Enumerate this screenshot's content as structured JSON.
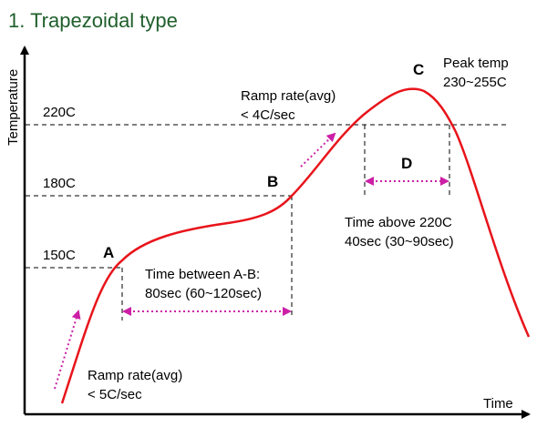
{
  "title": "1. Trapezoidal type",
  "axes": {
    "x_label": "Time",
    "y_label": "Temperature"
  },
  "temperatures": {
    "t220": "220C",
    "t180": "180C",
    "t150": "150C"
  },
  "points": {
    "a": "A",
    "b": "B",
    "c": "C",
    "d": "D"
  },
  "annotations": {
    "ramp_low_1": "Ramp rate(avg)",
    "ramp_low_2": "< 5C/sec",
    "ramp_high_1": "Ramp rate(avg)",
    "ramp_high_2": "< 4C/sec",
    "peak_1": "Peak temp",
    "peak_2": "230~255C",
    "ab_1": "Time between A-B:",
    "ab_2": "80sec (60~120sec)",
    "above_1": "Time above 220C",
    "above_2": "40sec  (30~90sec)"
  },
  "colors": {
    "title": "#1f5f2b",
    "curve": "#e8141b",
    "arrow": "#cc1fa6",
    "axis": "#000000"
  }
}
